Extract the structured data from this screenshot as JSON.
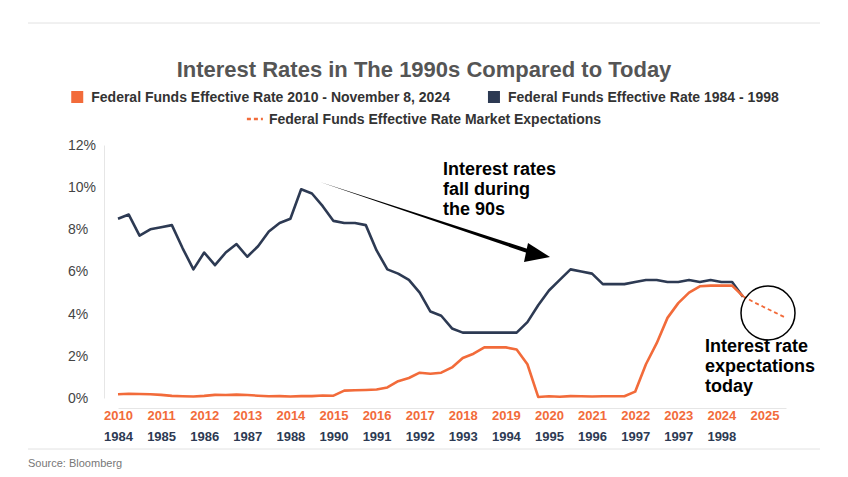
{
  "chart_data": {
    "type": "line",
    "title": "Interest Rates in The 1990s Compared to Today",
    "source": "Source: Bloomberg",
    "categories": [
      "2010",
      null,
      null,
      null,
      "2011",
      null,
      null,
      null,
      "2012",
      null,
      null,
      null,
      "2013",
      null,
      null,
      null,
      "2014",
      null,
      null,
      null,
      "2015",
      null,
      null,
      null,
      "2016",
      null,
      null,
      null,
      "2017",
      null,
      null,
      null,
      "2018",
      null,
      null,
      null,
      "2019",
      null,
      null,
      null,
      "2020",
      null,
      null,
      null,
      "2021",
      null,
      null,
      null,
      "2022",
      null,
      null,
      null,
      "2023",
      null,
      null,
      null,
      "2024",
      null,
      null,
      null,
      "2025",
      null,
      null
    ],
    "secondary_categories": [
      "1984",
      null,
      null,
      null,
      "1985",
      null,
      null,
      null,
      "1986",
      null,
      null,
      null,
      "1987",
      null,
      null,
      null,
      "1988",
      null,
      null,
      null,
      "1990",
      null,
      null,
      null,
      "1991",
      null,
      null,
      null,
      "1992",
      null,
      null,
      null,
      "1993",
      null,
      null,
      null,
      "1994",
      null,
      null,
      null,
      "1995",
      null,
      null,
      null,
      "1996",
      null,
      null,
      null,
      "1997",
      null,
      null,
      null,
      "1997",
      null,
      null,
      null,
      "1998",
      null,
      null,
      null,
      null,
      null,
      null
    ],
    "series": [
      {
        "name": "Federal Funds Effective Rate 2010 - November 8, 2024",
        "color": "#f26b3a",
        "line_style": "solid",
        "values": [
          0.18,
          0.2,
          0.19,
          0.18,
          0.15,
          0.1,
          0.08,
          0.07,
          0.1,
          0.15,
          0.14,
          0.16,
          0.14,
          0.11,
          0.08,
          0.09,
          0.07,
          0.09,
          0.09,
          0.12,
          0.11,
          0.35,
          0.37,
          0.38,
          0.4,
          0.5,
          0.8,
          0.95,
          1.2,
          1.15,
          1.2,
          1.45,
          1.9,
          2.1,
          2.4,
          2.4,
          2.4,
          2.3,
          1.6,
          0.05,
          0.08,
          0.06,
          0.09,
          0.08,
          0.07,
          0.08,
          0.08,
          0.08,
          0.3,
          1.6,
          2.6,
          3.8,
          4.5,
          5.0,
          5.3,
          5.33,
          5.33,
          5.33,
          4.83,
          null,
          null,
          null,
          null
        ]
      },
      {
        "name": "Federal Funds Effective Rate 1984 - 1998",
        "color": "#2d3a53",
        "line_style": "solid",
        "values": [
          8.5,
          8.7,
          7.7,
          8.0,
          8.1,
          8.2,
          7.1,
          6.1,
          6.9,
          6.3,
          6.9,
          7.3,
          6.7,
          7.2,
          7.9,
          8.3,
          8.5,
          9.9,
          9.7,
          9.1,
          8.4,
          8.3,
          8.3,
          8.2,
          7.0,
          6.1,
          5.9,
          5.6,
          5.0,
          4.1,
          3.9,
          3.3,
          3.1,
          3.1,
          3.1,
          3.1,
          3.1,
          3.1,
          3.6,
          4.4,
          5.1,
          5.6,
          6.1,
          6.0,
          5.9,
          5.4,
          5.4,
          5.4,
          5.5,
          5.6,
          5.6,
          5.5,
          5.5,
          5.6,
          5.5,
          5.6,
          5.5,
          5.5,
          4.8,
          null,
          null,
          null,
          null
        ]
      },
      {
        "name": "Federal Funds Effective Rate Market Expectations",
        "color": "#f26b3a",
        "line_style": "dashed",
        "values": [
          null,
          null,
          null,
          null,
          null,
          null,
          null,
          null,
          null,
          null,
          null,
          null,
          null,
          null,
          null,
          null,
          null,
          null,
          null,
          null,
          null,
          null,
          null,
          null,
          null,
          null,
          null,
          null,
          null,
          null,
          null,
          null,
          null,
          null,
          null,
          null,
          null,
          null,
          null,
          null,
          null,
          null,
          null,
          null,
          null,
          null,
          null,
          null,
          null,
          null,
          null,
          null,
          null,
          null,
          null,
          null,
          null,
          null,
          4.83,
          4.55,
          4.3,
          4.05,
          3.8
        ]
      }
    ],
    "ylim": [
      0,
      12
    ],
    "yticks": [
      {
        "value": 0,
        "label": "0%"
      },
      {
        "value": 2,
        "label": "2%"
      },
      {
        "value": 4,
        "label": "4%"
      },
      {
        "value": 6,
        "label": "6%"
      },
      {
        "value": 8,
        "label": "8%"
      },
      {
        "value": 10,
        "label": "10%"
      },
      {
        "value": 12,
        "label": "12%"
      }
    ],
    "grid": false,
    "annotations": [
      {
        "text": [
          "Interest rates",
          "fall during",
          "the 90s"
        ]
      },
      {
        "text": [
          "Interest rate",
          "expectations",
          "today"
        ]
      }
    ]
  }
}
